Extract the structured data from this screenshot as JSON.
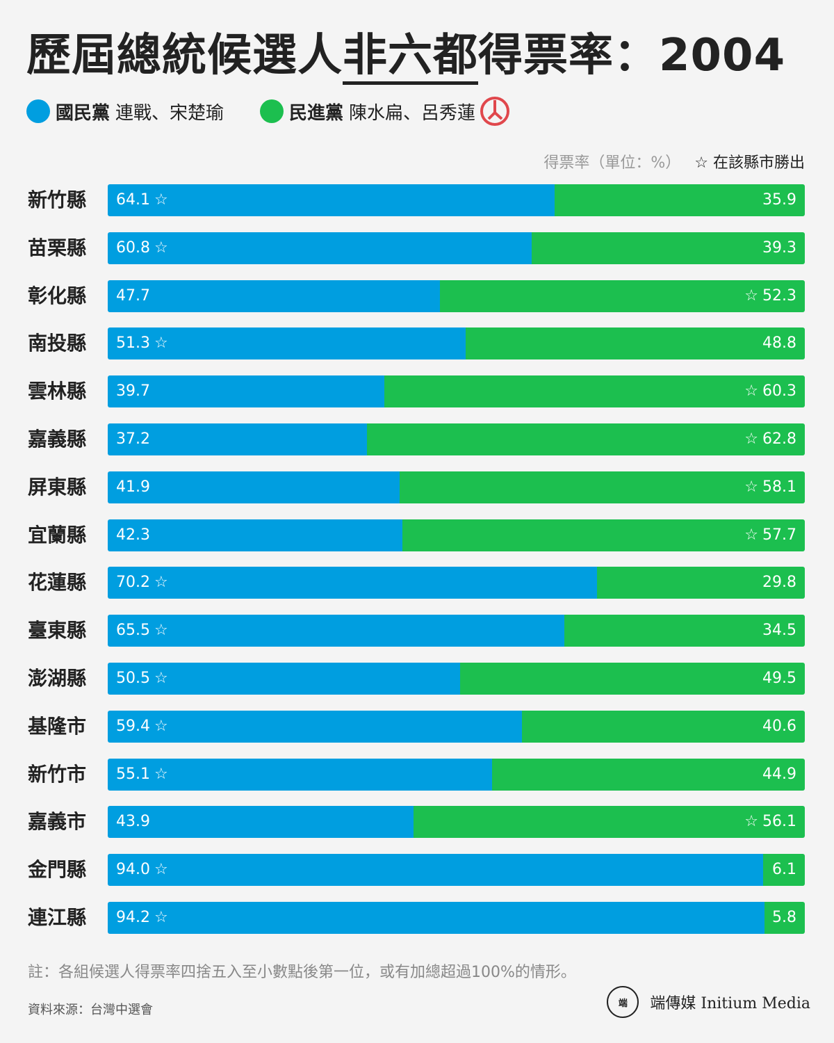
{
  "title": {
    "part1": "歷屆總統候選人",
    "part2": "非六都",
    "part3": "得票率：2004"
  },
  "legend": [
    {
      "party": "國民黨",
      "candidates": "連戰、宋楚瑜",
      "color": "#009ee0"
    },
    {
      "party": "民進黨",
      "candidates": "陳水扁、呂秀蓮",
      "color": "#1cbf4f"
    }
  ],
  "unit_note": "得票率（單位：%）",
  "winner_note": "☆ 在該縣市勝出",
  "chart_data": {
    "type": "bar",
    "stacked": true,
    "orientation": "horizontal",
    "categories": [
      "新竹縣",
      "苗栗縣",
      "彰化縣",
      "南投縣",
      "雲林縣",
      "嘉義縣",
      "屏東縣",
      "宜蘭縣",
      "花蓮縣",
      "臺東縣",
      "澎湖縣",
      "基隆市",
      "新竹市",
      "嘉義市",
      "金門縣",
      "連江縣"
    ],
    "series": [
      {
        "name": "國民黨",
        "values": [
          "64.1",
          "60.8",
          "47.7",
          "51.3",
          "39.7",
          "37.2",
          "41.9",
          "42.3",
          "70.2",
          "65.5",
          "50.5",
          "59.4",
          "55.1",
          "43.9",
          "94.0",
          "94.2"
        ]
      },
      {
        "name": "民進黨",
        "values": [
          "35.9",
          "39.3",
          "52.3",
          "48.8",
          "60.3",
          "62.8",
          "58.1",
          "57.7",
          "29.8",
          "34.5",
          "49.5",
          "40.6",
          "44.9",
          "56.1",
          "6.1",
          "5.8"
        ]
      }
    ],
    "xlim": [
      0,
      100
    ]
  },
  "footnote": "註：各組候選人得票率四捨五入至小數點後第一位，或有加總超過100%的情形。",
  "source": "資料來源：台灣中選會",
  "brand": {
    "logo_text": "端",
    "name": "端傳媒 Initium Media"
  }
}
